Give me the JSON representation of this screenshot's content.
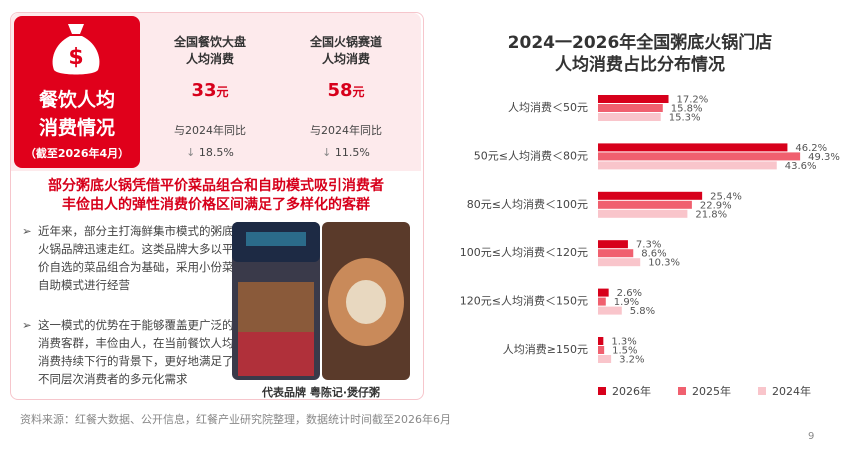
{
  "panel": {
    "title_lines": [
      "餐饮人均",
      "消费情况"
    ],
    "note": "（截至2026年4月）",
    "stats": [
      {
        "label_lines": [
          "全国餐饮大盘",
          "人均消费"
        ],
        "value": "33",
        "unit": "元",
        "compare": "与2024年同比",
        "change": "18.5%"
      },
      {
        "label_lines": [
          "全国火锅赛道",
          "人均消费"
        ],
        "value": "58",
        "unit": "元",
        "compare": "与2024年同比",
        "change": "11.5%"
      }
    ],
    "headline_lines": [
      "部分粥底火锅凭借平价菜品组合和自助模式吸引消费者",
      "丰俭由人的弹性消费价格区间满足了多样化的客群"
    ],
    "bullets": [
      "近年来，部分主打海鲜集市模式的粥底火锅品牌迅速走红。这类品牌大多以平价自选的菜品组合为基础，采用小份菜自助模式进行经营",
      "这一模式的优势在于能够覆盖更广泛的消费客群，丰俭由人，在当前餐饮人均消费持续下行的背景下，更好地满足了不同层次消费者的多元化需求"
    ],
    "caption": "代表品牌 粤陈记·煲仔粥"
  },
  "chart_data": {
    "type": "hbar",
    "title": [
      "2024一2026年全国粥底火锅门店",
      "人均消费占比分布情况"
    ],
    "categories": [
      "人均消费＜50元",
      "50元≤人均消费＜80元",
      "80元≤人均消费＜100元",
      "100元≤人均消费＜120元",
      "120元≤人均消费＜150元",
      "人均消费≥150元"
    ],
    "series": [
      {
        "name": "2026年",
        "color": "#d7001b",
        "values": [
          17.2,
          46.2,
          25.4,
          7.3,
          2.6,
          1.3
        ],
        "value_labels": [
          "17.2%",
          "46.2%",
          "25.4%",
          "7.3%",
          "2.6%",
          "1.3%"
        ]
      },
      {
        "name": "2025年",
        "color": "#f0606f",
        "values": [
          15.8,
          49.3,
          22.9,
          8.6,
          1.9,
          1.5
        ],
        "value_labels": [
          "15.8%",
          "49.3%",
          "22.9%",
          "8.6%",
          "1.9%",
          "1.5%"
        ]
      },
      {
        "name": "2024年",
        "color": "#f9c5cb",
        "values": [
          15.3,
          43.6,
          21.8,
          10.3,
          5.8,
          3.2
        ],
        "value_labels": [
          "15.3%",
          "43.6%",
          "21.8%",
          "10.3%",
          "5.8%",
          "3.2%"
        ]
      }
    ],
    "legend": "bottom"
  },
  "source": "资料来源：红餐大数据、公开信息，红餐产业研究院整理，数据统计时间截至2026年6月",
  "page_number": "9"
}
